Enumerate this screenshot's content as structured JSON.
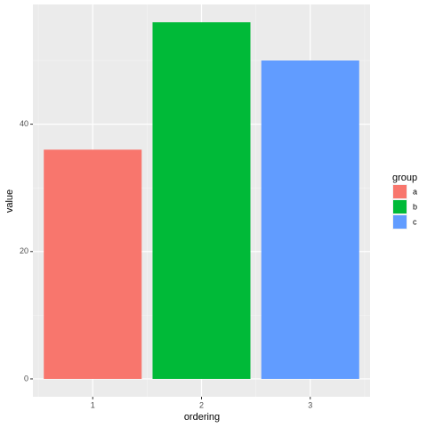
{
  "chart_data": {
    "type": "bar",
    "x": [
      1,
      2,
      3
    ],
    "values": [
      36,
      56,
      50
    ],
    "groups": [
      "a",
      "b",
      "c"
    ],
    "colors": [
      "#f8766d",
      "#00ba38",
      "#619cff"
    ],
    "legend_title": "group",
    "xlabel": "ordering",
    "ylabel": "value",
    "xlim": [
      0.45,
      3.55
    ],
    "xticks": [
      1,
      2,
      3
    ],
    "ylim": [
      -2.8,
      58.8
    ],
    "yticks": [
      0,
      20,
      40
    ],
    "grid": true,
    "legend": "right"
  }
}
